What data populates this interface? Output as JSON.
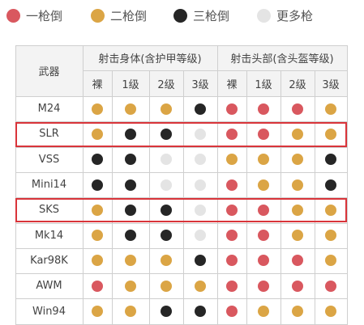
{
  "legend": [
    {
      "label": "一枪倒",
      "color": "#d9585f"
    },
    {
      "label": "二枪倒",
      "color": "#dba545"
    },
    {
      "label": "三枪倒",
      "color": "#262626"
    },
    {
      "label": "更多枪",
      "color": "#e4e4e4"
    }
  ],
  "headers": {
    "weapon": "武器",
    "body_group": "射击身体(含护甲等级)",
    "head_group": "射击头部(含头盔等级)",
    "levels": [
      "裸",
      "1级",
      "2级",
      "3级"
    ]
  },
  "rows": [
    {
      "name": "M24",
      "highlight": false,
      "body": [
        "o",
        "o",
        "o",
        "b"
      ],
      "head": [
        "r",
        "r",
        "r",
        "o"
      ]
    },
    {
      "name": "SLR",
      "highlight": true,
      "body": [
        "o",
        "b",
        "b",
        "g"
      ],
      "head": [
        "r",
        "r",
        "o",
        "o"
      ]
    },
    {
      "name": "VSS",
      "highlight": false,
      "body": [
        "b",
        "b",
        "g",
        "g"
      ],
      "head": [
        "o",
        "o",
        "o",
        "b"
      ]
    },
    {
      "name": "Mini14",
      "highlight": false,
      "body": [
        "b",
        "b",
        "g",
        "g"
      ],
      "head": [
        "r",
        "o",
        "o",
        "b"
      ]
    },
    {
      "name": "SKS",
      "highlight": true,
      "body": [
        "o",
        "b",
        "b",
        "g"
      ],
      "head": [
        "r",
        "r",
        "o",
        "o"
      ]
    },
    {
      "name": "Mk14",
      "highlight": false,
      "body": [
        "o",
        "b",
        "b",
        "g"
      ],
      "head": [
        "r",
        "r",
        "o",
        "o"
      ]
    },
    {
      "name": "Kar98K",
      "highlight": false,
      "body": [
        "o",
        "o",
        "o",
        "b"
      ],
      "head": [
        "r",
        "r",
        "r",
        "o"
      ]
    },
    {
      "name": "AWM",
      "highlight": false,
      "body": [
        "r",
        "o",
        "o",
        "o"
      ],
      "head": [
        "r",
        "r",
        "r",
        "r"
      ]
    },
    {
      "name": "Win94",
      "highlight": false,
      "body": [
        "o",
        "o",
        "b",
        "b"
      ],
      "head": [
        "r",
        "o",
        "o",
        "o"
      ]
    }
  ],
  "colors": {
    "r": "#d9585f",
    "o": "#dba545",
    "b": "#262626",
    "g": "#e4e4e4",
    "highlight": "#d9343a"
  }
}
